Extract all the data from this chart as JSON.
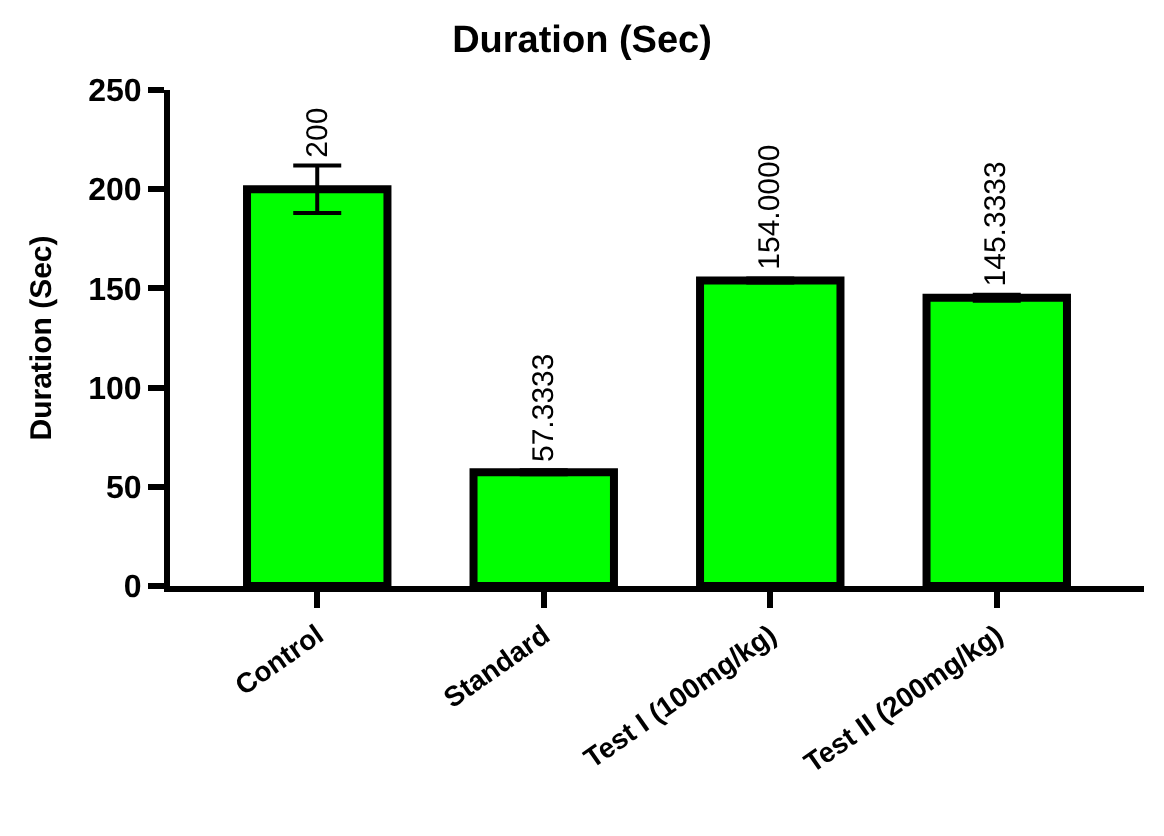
{
  "chart_data": {
    "type": "bar",
    "title": "Duration (Sec)",
    "ylabel": "Duration (Sec)",
    "categories": [
      "Control",
      "Standard",
      "Test I (100mg/kg)",
      "Test II (200mg/kg)"
    ],
    "values": [
      200,
      57.3333,
      154,
      145.3333
    ],
    "errors": [
      12,
      1,
      1,
      1.5
    ],
    "value_labels": [
      "200",
      "57.3333",
      "154.0000",
      "145.3333"
    ],
    "color": "#00ff00",
    "ylim": [
      0,
      250
    ],
    "yticks": [
      0,
      50,
      100,
      150,
      200,
      250
    ]
  }
}
